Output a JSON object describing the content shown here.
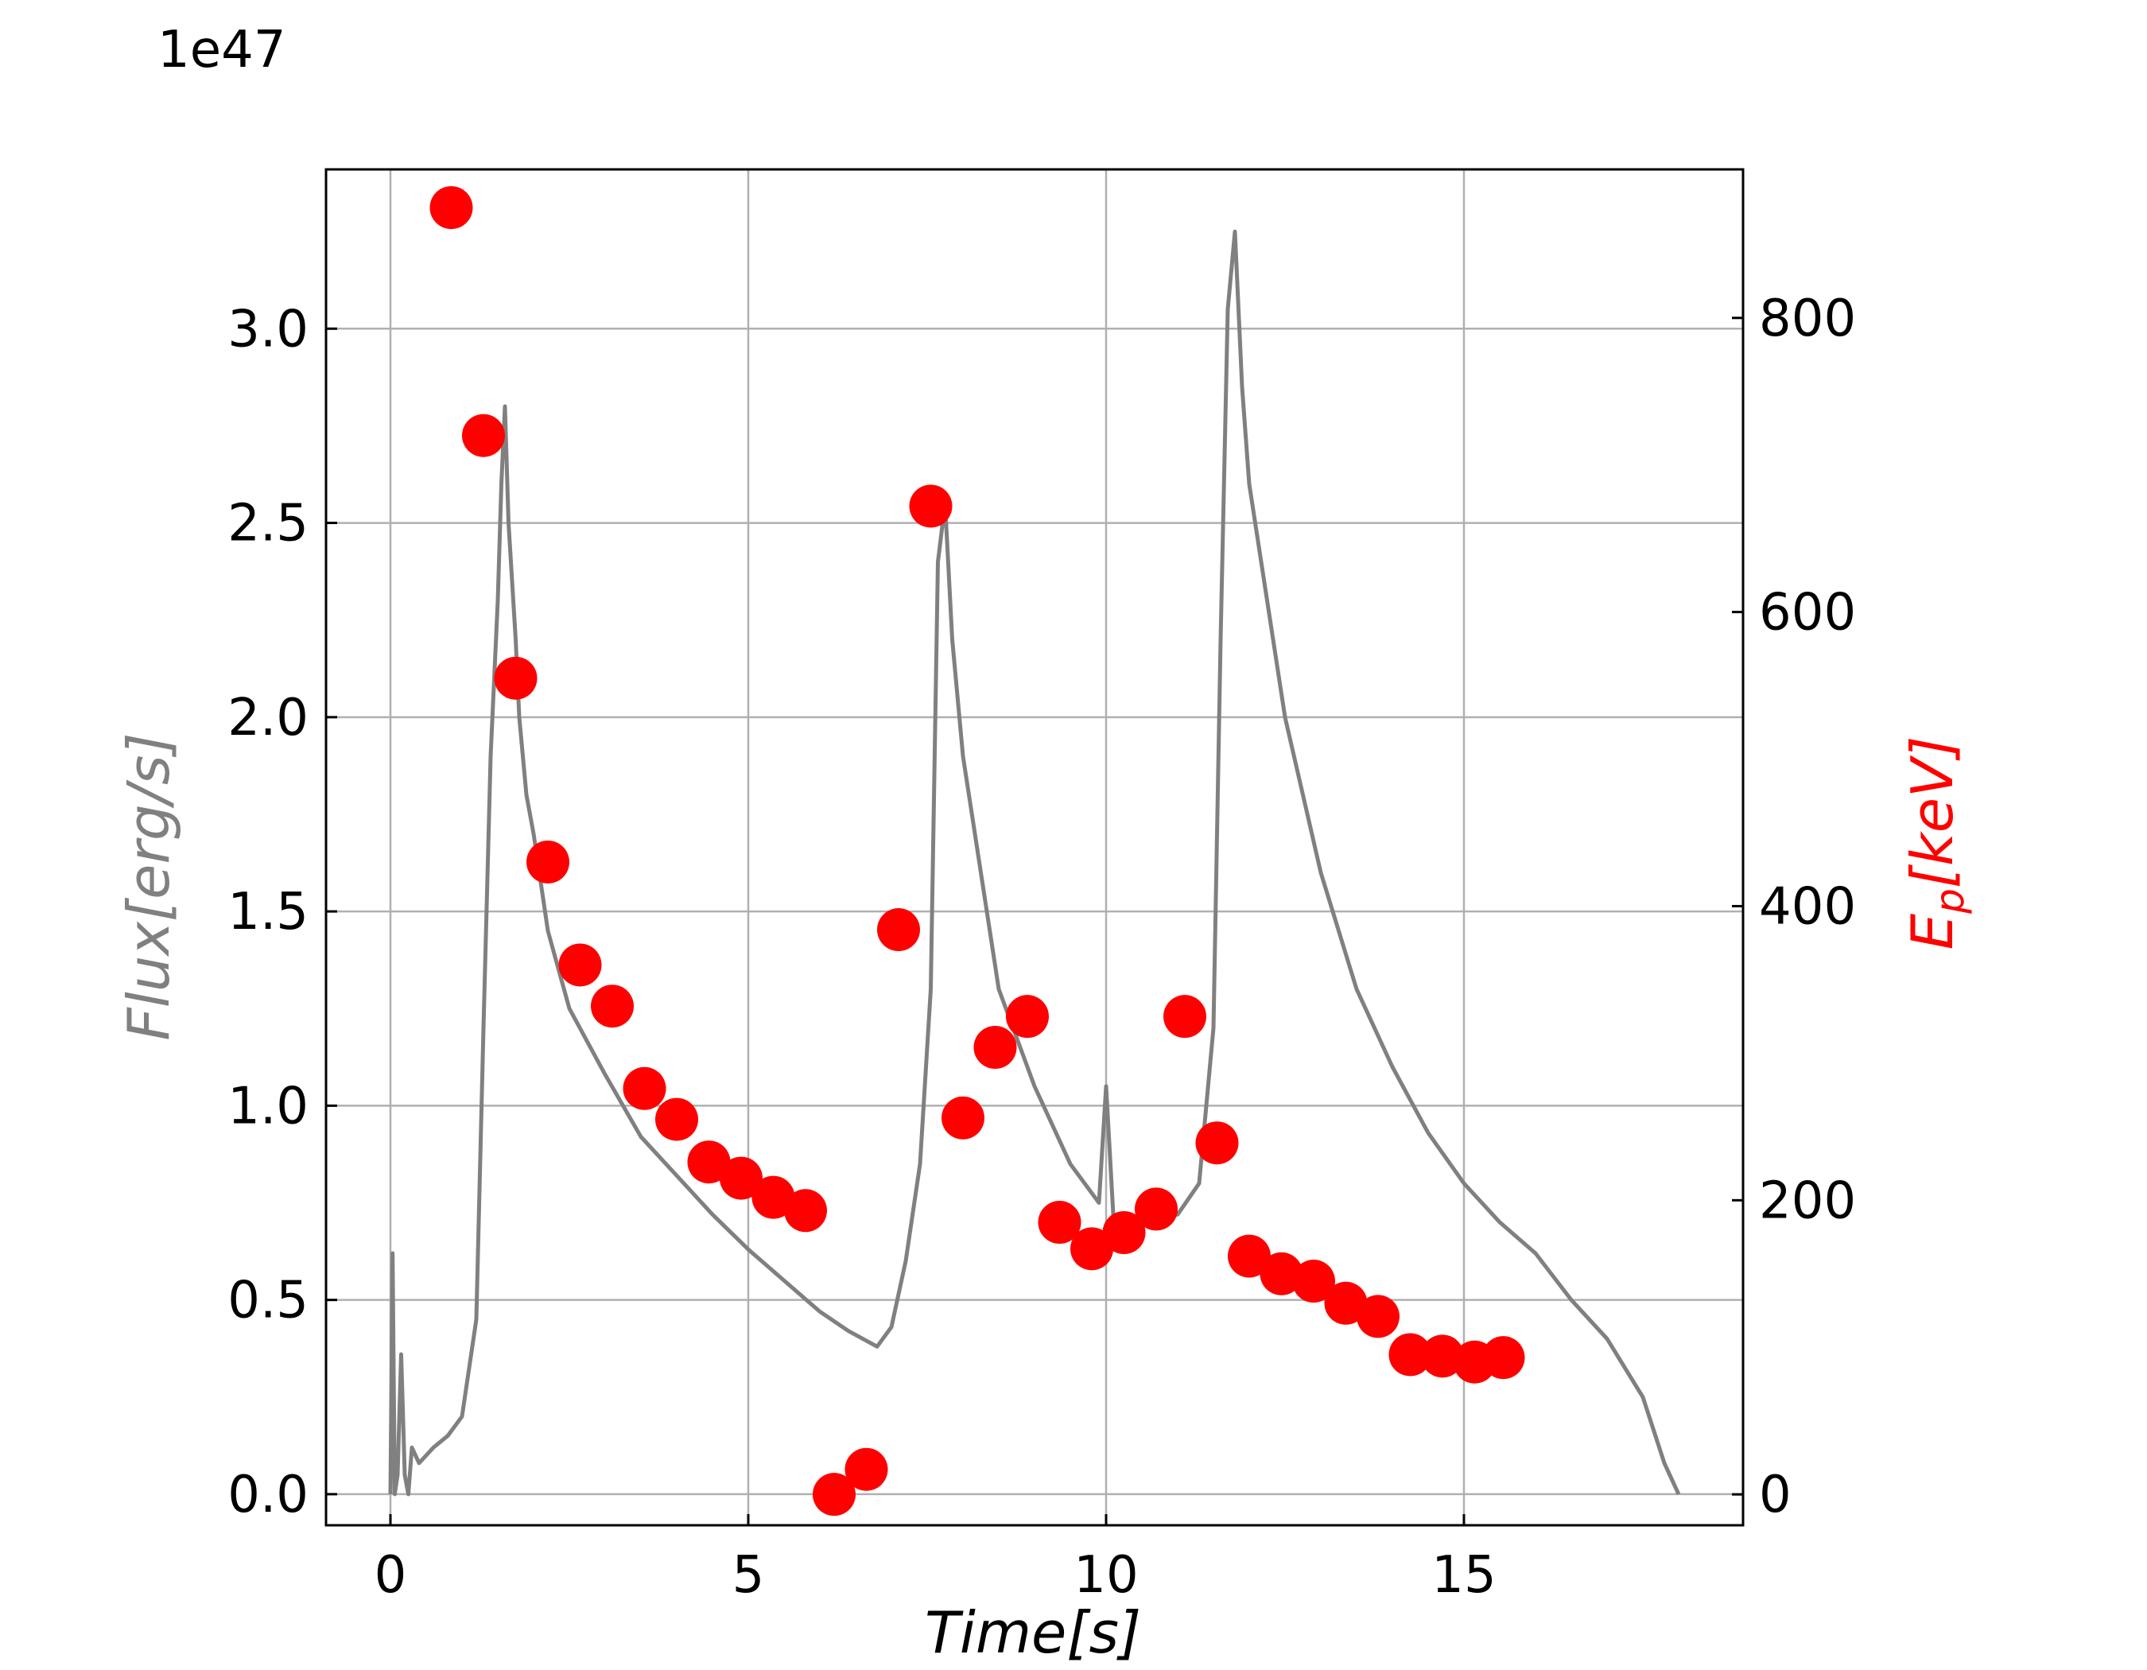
{
  "chart_data": {
    "type": "line",
    "xlabel": "Time[s]",
    "ylabel_left": "Flux[erg/s]",
    "ylabel_right_html": [
      "E",
      "p",
      "[keV]"
    ],
    "left_axis_offset": "1e47",
    "xlim": [
      -0.9,
      18.9
    ],
    "ylim_left": [
      -0.08,
      3.41
    ],
    "ylim_right": [
      -21,
      901
    ],
    "x_ticks": [
      0,
      5,
      10,
      15
    ],
    "x_tick_labels": [
      "0",
      "5",
      "10",
      "15"
    ],
    "y_left_ticks": [
      0.0,
      0.5,
      1.0,
      1.5,
      2.0,
      2.5,
      3.0
    ],
    "y_left_tick_labels": [
      "0.0",
      "0.5",
      "1.0",
      "1.5",
      "2.0",
      "2.5",
      "3.0"
    ],
    "y_right_ticks": [
      0,
      200,
      400,
      600,
      800
    ],
    "y_right_tick_labels": [
      "0",
      "200",
      "400",
      "600",
      "800"
    ],
    "grid": true,
    "colors": {
      "flux": "#808080",
      "ep": "#ff0000",
      "grid": "#b0b0b0",
      "axis": "#000000"
    },
    "series": [
      {
        "axis": "left",
        "style": "line",
        "x": [
          0.0,
          0.03,
          0.06,
          0.1,
          0.15,
          0.2,
          0.25,
          0.3,
          0.4,
          0.5,
          0.6,
          0.8,
          1.0,
          1.2,
          1.3,
          1.4,
          1.5,
          1.55,
          1.6,
          1.65,
          1.7,
          1.75,
          1.8,
          1.9,
          2.0,
          2.2,
          2.5,
          3.0,
          3.5,
          4.0,
          4.5,
          5.0,
          5.5,
          6.0,
          6.4,
          6.8,
          7.0,
          7.2,
          7.4,
          7.55,
          7.65,
          7.75,
          7.85,
          8.0,
          8.5,
          9.0,
          9.5,
          9.9,
          10.0,
          10.1,
          10.5,
          11.0,
          11.3,
          11.5,
          11.6,
          11.7,
          11.8,
          11.9,
          12.0,
          12.5,
          13.0,
          13.5,
          14.0,
          14.5,
          15.0,
          15.5,
          16.0,
          16.5,
          17.0,
          17.5,
          17.8,
          18.0
        ],
        "y": [
          0.0,
          0.62,
          0.0,
          0.05,
          0.36,
          0.05,
          0.0,
          0.12,
          0.08,
          0.1,
          0.12,
          0.15,
          0.2,
          0.45,
          1.2,
          1.9,
          2.3,
          2.6,
          2.8,
          2.5,
          2.35,
          2.2,
          2.0,
          1.8,
          1.7,
          1.45,
          1.25,
          1.08,
          0.92,
          0.82,
          0.72,
          0.63,
          0.55,
          0.47,
          0.42,
          0.38,
          0.43,
          0.6,
          0.85,
          1.3,
          2.4,
          2.55,
          2.2,
          1.9,
          1.3,
          1.05,
          0.85,
          0.75,
          1.05,
          0.72,
          0.7,
          0.72,
          0.8,
          1.2,
          2.2,
          3.05,
          3.25,
          2.85,
          2.6,
          2.0,
          1.6,
          1.3,
          1.1,
          0.93,
          0.8,
          0.7,
          0.62,
          0.5,
          0.4,
          0.25,
          0.08,
          0.0
        ]
      },
      {
        "axis": "right",
        "style": "scatter",
        "x": [
          0.85,
          1.3,
          1.75,
          2.2,
          2.65,
          3.1,
          3.55,
          4.0,
          4.45,
          4.9,
          5.35,
          5.8,
          6.2,
          6.65,
          7.1,
          7.55,
          8.0,
          8.45,
          8.9,
          9.35,
          9.8,
          10.25,
          10.7,
          11.1,
          11.55,
          12.0,
          12.45,
          12.9,
          13.35,
          13.8,
          14.25,
          14.7,
          15.15,
          15.55
        ],
        "y": [
          875,
          720,
          555,
          430,
          360,
          332,
          276,
          255,
          226,
          215,
          202,
          193,
          0,
          17,
          384,
          672,
          256,
          304,
          325,
          185,
          167,
          178,
          194,
          325,
          239,
          162,
          150,
          145,
          130,
          121,
          95,
          94,
          90,
          93
        ]
      }
    ]
  }
}
